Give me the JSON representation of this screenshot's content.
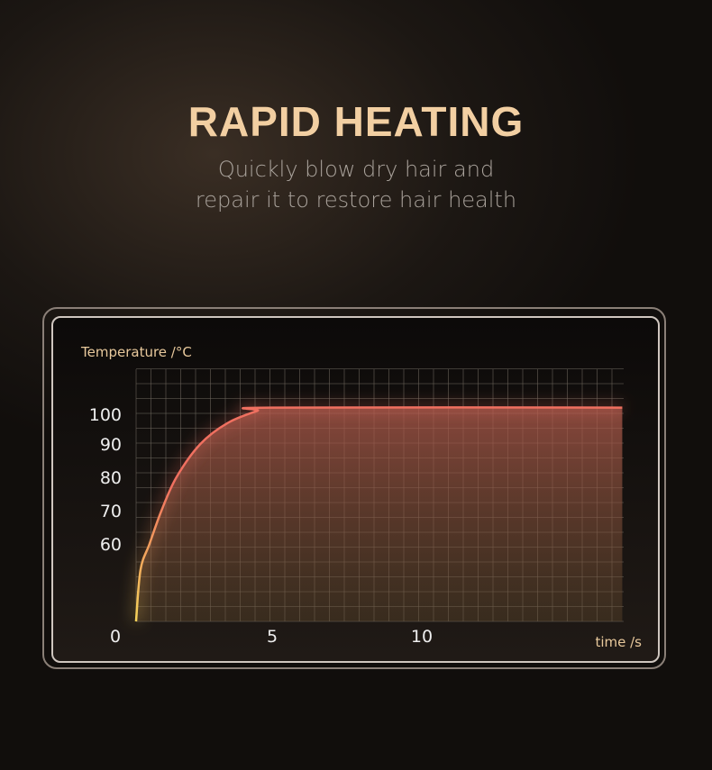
{
  "header": {
    "title": "RAPID HEATING",
    "subtitle_line1": "Quickly blow dry hair and",
    "subtitle_line2": "repair it to restore hair health"
  },
  "colors": {
    "title": "#f2cfa2",
    "curve_start": "#f5d35a",
    "curve_end": "#f07060",
    "fill": "#a85a4c"
  },
  "chart_data": {
    "type": "area",
    "title": "",
    "xlabel": "time /s",
    "ylabel": "Temperature /°C",
    "x_ticks": [
      0,
      5,
      10
    ],
    "y_ticks": [
      60,
      70,
      80,
      90,
      100
    ],
    "y_origin_label": "0",
    "grid": true,
    "series": [
      {
        "x": [
          0.45,
          0.6,
          0.9,
          1.3,
          1.8,
          2.6,
          3.5,
          4.5,
          5,
          16.7
        ],
        "y": [
          0,
          40,
          60,
          70,
          80,
          90,
          97,
          101,
          102,
          102
        ]
      }
    ]
  }
}
